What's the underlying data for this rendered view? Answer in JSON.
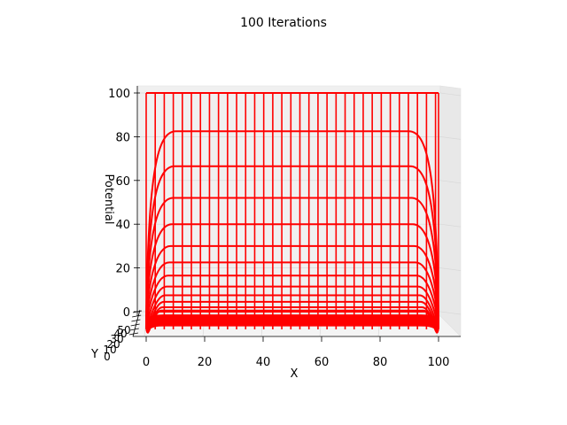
{
  "chart_data": {
    "type": "line",
    "projection": "3d-wireframe",
    "title": "100 Iterations",
    "xlabel": "X",
    "ylabel": "Y",
    "zlabel": "Potential",
    "x_ticks": [
      "0",
      "20",
      "40",
      "60",
      "80",
      "100"
    ],
    "y_ticks": [
      "0",
      "10",
      "20",
      "30",
      "40",
      "50"
    ],
    "z_ticks": [
      "0",
      "20",
      "40",
      "60",
      "80",
      "100"
    ],
    "xlim": [
      0,
      100
    ],
    "ylim": [
      0,
      50
    ],
    "zlim": [
      0,
      100
    ],
    "grid": true,
    "line_color": "#ff0000",
    "vertical_profile_x": [
      0,
      3,
      6,
      9,
      12,
      15,
      18,
      21,
      24,
      27,
      30,
      33,
      36,
      39,
      42,
      45,
      48,
      51,
      54,
      57,
      60,
      63,
      66,
      69,
      72,
      75,
      78,
      81,
      84,
      87,
      90,
      93,
      96,
      97
    ],
    "plateau_levels": [
      100,
      82.5,
      66.5,
      52,
      40,
      30,
      22.5,
      16.5,
      11.5,
      7.5,
      4.5,
      2,
      0.5,
      0
    ],
    "top_boundary": 100
  }
}
